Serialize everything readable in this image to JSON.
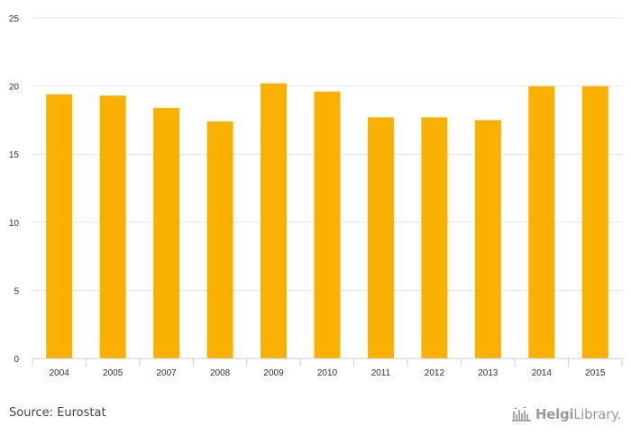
{
  "chart_data": {
    "type": "bar",
    "categories": [
      "2004",
      "2005",
      "2007",
      "2008",
      "2009",
      "2010",
      "2011",
      "2012",
      "2013",
      "2014",
      "2015"
    ],
    "values": [
      19.4,
      19.3,
      18.4,
      17.4,
      20.2,
      19.6,
      17.7,
      17.7,
      17.5,
      20.0,
      20.0
    ],
    "title": "",
    "xlabel": "",
    "ylabel": "",
    "ylim": [
      0,
      25
    ],
    "yticks": [
      "0",
      "5",
      "10",
      "15",
      "20",
      "25"
    ],
    "grid": true,
    "bar_color": "#f9b000"
  },
  "footer": {
    "source": "Source: Eurostat",
    "logo_part1": "Helgi",
    "logo_part2": "Library."
  },
  "colors": {
    "grid": "#e6e6e6",
    "axis": "#cccccc",
    "text": "#333333"
  },
  "icons": {
    "logo": "helgi-library-castle-icon"
  }
}
